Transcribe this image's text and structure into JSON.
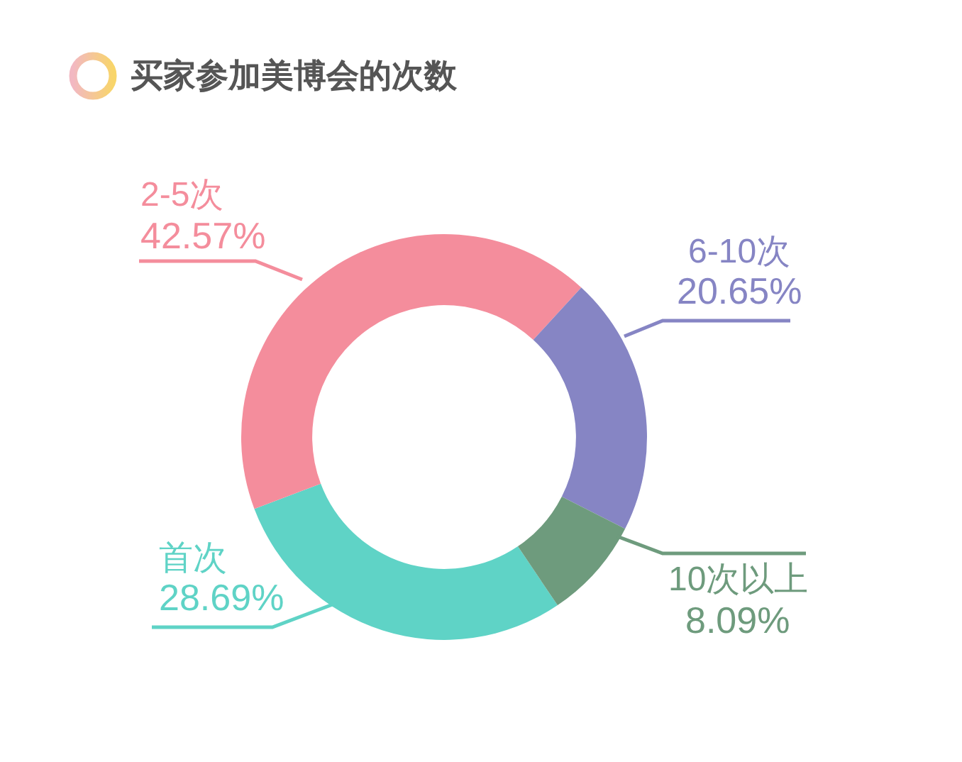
{
  "chart_data": {
    "type": "donut",
    "title": "买家参加美博会的次数",
    "categories": [
      "首次",
      "2-5次",
      "6-10次",
      "10次以上"
    ],
    "values": [
      28.69,
      42.57,
      20.65,
      8.09
    ],
    "value_labels": [
      "28.69%",
      "42.57%",
      "20.65%",
      "8.09%"
    ],
    "colors": [
      "#5fd3c6",
      "#f48d9c",
      "#8685c4",
      "#6e9b7d"
    ]
  }
}
